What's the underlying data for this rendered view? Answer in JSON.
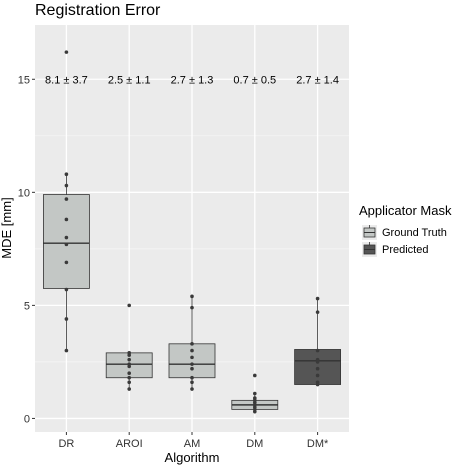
{
  "chart_data": {
    "type": "boxplot",
    "title": "Registration Error",
    "xlabel": "Algorithm",
    "ylabel": "MDE [mm]",
    "ylim": [
      -0.6,
      17.4
    ],
    "yticks": [
      0,
      5,
      10,
      15
    ],
    "grid": true,
    "legend": {
      "title": "Applicator Mask",
      "placement": "right",
      "entries": [
        {
          "name": "Ground Truth",
          "color": "#c3c7c5"
        },
        {
          "name": "Predicted",
          "color": "#555555"
        }
      ]
    },
    "categories": [
      "DR",
      "AROI",
      "AM",
      "DM",
      "DM*"
    ],
    "annotations": [
      "8.1 ± 3.7",
      "2.5 ± 1.1",
      "2.7 ± 1.3",
      "0.7 ± 0.5",
      "2.7 ± 1.4"
    ],
    "annotation_y": 15.0,
    "boxes": [
      {
        "category": "DR",
        "group": "Ground Truth",
        "whisker_low": 3.0,
        "q1": 5.75,
        "median": 7.75,
        "q3": 9.9,
        "whisker_high": 10.8,
        "points": [
          16.2,
          10.8,
          10.3,
          9.7,
          8.8,
          8.0,
          7.7,
          6.9,
          5.7,
          4.4,
          3.0
        ]
      },
      {
        "category": "AROI",
        "group": "Ground Truth",
        "whisker_low": 1.3,
        "q1": 1.8,
        "median": 2.4,
        "q3": 2.9,
        "whisker_high": 2.9,
        "points": [
          5.0,
          2.9,
          2.8,
          2.6,
          2.4,
          2.3,
          2.0,
          1.8,
          1.6,
          1.3
        ]
      },
      {
        "category": "AM",
        "group": "Ground Truth",
        "whisker_low": 1.3,
        "q1": 1.8,
        "median": 2.4,
        "q3": 3.3,
        "whisker_high": 5.4,
        "points": [
          5.4,
          4.9,
          3.3,
          3.0,
          2.7,
          2.4,
          2.2,
          1.8,
          1.6,
          1.3
        ]
      },
      {
        "category": "DM",
        "group": "Ground Truth",
        "whisker_low": 0.3,
        "q1": 0.4,
        "median": 0.6,
        "q3": 0.8,
        "whisker_high": 1.1,
        "points": [
          1.9,
          1.1,
          0.9,
          0.8,
          0.7,
          0.6,
          0.5,
          0.4,
          0.3
        ]
      },
      {
        "category": "DM*",
        "group": "Predicted",
        "whisker_low": 1.5,
        "q1": 1.5,
        "median": 2.55,
        "q3": 3.05,
        "whisker_high": 5.3,
        "points": [
          5.3,
          4.7,
          3.0,
          2.6,
          2.5,
          2.2,
          1.9,
          1.6,
          1.5
        ]
      }
    ]
  }
}
